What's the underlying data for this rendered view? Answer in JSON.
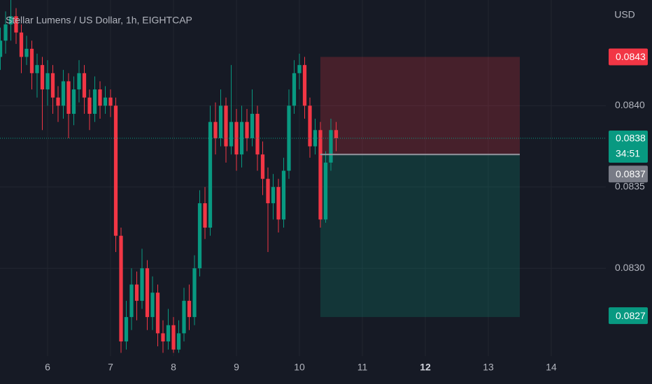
{
  "chart_data": {
    "type": "candlestick",
    "title": "Stellar Lumens / US Dollar, 1h, EIGHTCAP",
    "currency": "USD",
    "up_color": "#089981",
    "down_color": "#f23645",
    "grid": true,
    "x": [
      5.25,
      5.3333,
      5.4167,
      5.5,
      5.5833,
      5.6667,
      5.75,
      5.8333,
      5.9167,
      6,
      6.0833,
      6.1667,
      6.25,
      6.3333,
      6.4167,
      6.5,
      6.5833,
      6.6667,
      6.75,
      6.8333,
      6.9167,
      7,
      7.0833,
      7.1667,
      7.25,
      7.3333,
      7.4167,
      7.5,
      7.5833,
      7.6667,
      7.75,
      7.8333,
      7.9167,
      8,
      8.0833,
      8.1667,
      8.25,
      8.3333,
      8.4167,
      8.5,
      8.5833,
      8.6667,
      8.75,
      8.8333,
      8.9167,
      9,
      9.0833,
      9.1667,
      9.25,
      9.3333,
      9.4167,
      9.5,
      9.5833,
      9.6667,
      9.75,
      9.8333,
      9.9167,
      10,
      10.0833,
      10.1667,
      10.25,
      10.3333,
      10.4167,
      10.5,
      10.5833
    ],
    "open": [
      0.0843,
      0.0844,
      0.0845,
      0.08455,
      0.08445,
      0.0843,
      0.08435,
      0.0842,
      0.08425,
      0.0841,
      0.0842,
      0.08405,
      0.084,
      0.08415,
      0.08395,
      0.0841,
      0.0842,
      0.08405,
      0.08395,
      0.0841,
      0.084,
      0.08405,
      0.084,
      0.0832,
      0.08255,
      0.0827,
      0.0829,
      0.0828,
      0.083,
      0.0827,
      0.08285,
      0.0826,
      0.08255,
      0.08265,
      0.0825,
      0.0826,
      0.0828,
      0.0827,
      0.083,
      0.0834,
      0.08325,
      0.0839,
      0.0838,
      0.084,
      0.08375,
      0.0839,
      0.0837,
      0.0839,
      0.0838,
      0.08395,
      0.0837,
      0.08355,
      0.0834,
      0.0835,
      0.0833,
      0.0836,
      0.084,
      0.0842,
      0.08425,
      0.084,
      0.08375,
      0.08385,
      0.0833,
      0.08365,
      0.08385
    ],
    "high": [
      0.08448,
      0.08458,
      0.08465,
      0.0846,
      0.0845,
      0.08443,
      0.0844,
      0.08432,
      0.0843,
      0.08428,
      0.08425,
      0.08412,
      0.08422,
      0.0842,
      0.08418,
      0.08428,
      0.08425,
      0.0841,
      0.08418,
      0.08415,
      0.08412,
      0.0841,
      0.08405,
      0.08325,
      0.0828,
      0.083,
      0.08298,
      0.08312,
      0.08305,
      0.08295,
      0.0829,
      0.08268,
      0.08275,
      0.0827,
      0.08268,
      0.08288,
      0.0829,
      0.08308,
      0.08348,
      0.0835,
      0.084,
      0.08402,
      0.0841,
      0.08405,
      0.08425,
      0.08398,
      0.084,
      0.08398,
      0.0841,
      0.084,
      0.08378,
      0.08362,
      0.08358,
      0.08355,
      0.08368,
      0.0841,
      0.08428,
      0.08432,
      0.0843,
      0.08405,
      0.08392,
      0.0839,
      0.08372,
      0.08392,
      0.0839
    ],
    "low": [
      0.08422,
      0.08432,
      0.0844,
      0.08438,
      0.0842,
      0.08425,
      0.0841,
      0.08405,
      0.08385,
      0.084,
      0.08395,
      0.0839,
      0.08392,
      0.0838,
      0.08388,
      0.08402,
      0.08395,
      0.08385,
      0.0839,
      0.08392,
      0.08395,
      0.08393,
      0.0831,
      0.08248,
      0.0825,
      0.08262,
      0.08268,
      0.08275,
      0.08262,
      0.08262,
      0.08252,
      0.08248,
      0.0825,
      0.08248,
      0.08248,
      0.08255,
      0.08262,
      0.08265,
      0.08295,
      0.08318,
      0.0832,
      0.0837,
      0.08375,
      0.08365,
      0.0837,
      0.0836,
      0.08362,
      0.08372,
      0.08375,
      0.0836,
      0.08345,
      0.0831,
      0.0833,
      0.08322,
      0.08325,
      0.08355,
      0.08395,
      0.0841,
      0.08392,
      0.08368,
      0.0837,
      0.08325,
      0.08328,
      0.0836,
      0.08372
    ],
    "close": [
      0.0844,
      0.0845,
      0.08455,
      0.08445,
      0.0843,
      0.08435,
      0.0842,
      0.08425,
      0.0841,
      0.0842,
      0.08405,
      0.084,
      0.08415,
      0.08395,
      0.0841,
      0.0842,
      0.08405,
      0.08395,
      0.0841,
      0.084,
      0.08405,
      0.084,
      0.0832,
      0.08255,
      0.0827,
      0.0829,
      0.0828,
      0.083,
      0.0827,
      0.08285,
      0.0826,
      0.08255,
      0.08265,
      0.0825,
      0.0826,
      0.0828,
      0.0827,
      0.083,
      0.0834,
      0.08325,
      0.0839,
      0.0838,
      0.084,
      0.08375,
      0.0839,
      0.0837,
      0.0839,
      0.0838,
      0.08395,
      0.0837,
      0.08355,
      0.0834,
      0.0835,
      0.0833,
      0.0836,
      0.084,
      0.0842,
      0.08425,
      0.084,
      0.08375,
      0.08385,
      0.0833,
      0.08365,
      0.08385,
      0.0838
    ],
    "xlim": [
      5.2444,
      14.8667
    ],
    "xticks": [
      6,
      7,
      8,
      9,
      10,
      11,
      {
        "value": 12,
        "label": "12",
        "bold": true
      },
      13,
      14
    ],
    "ylim": [
      0.08246,
      0.08465
    ],
    "yticks": [
      {
        "value": 0.083,
        "label": "0.0830"
      },
      0.0835,
      {
        "value": 0.084,
        "label": "0.0840"
      }
    ],
    "last_price": 0.0838,
    "countdown": "34:51",
    "position": {
      "start": 10.3333,
      "end": 13.5,
      "entry": 0.0837,
      "stop": 0.0843,
      "target": 0.0827
    }
  }
}
